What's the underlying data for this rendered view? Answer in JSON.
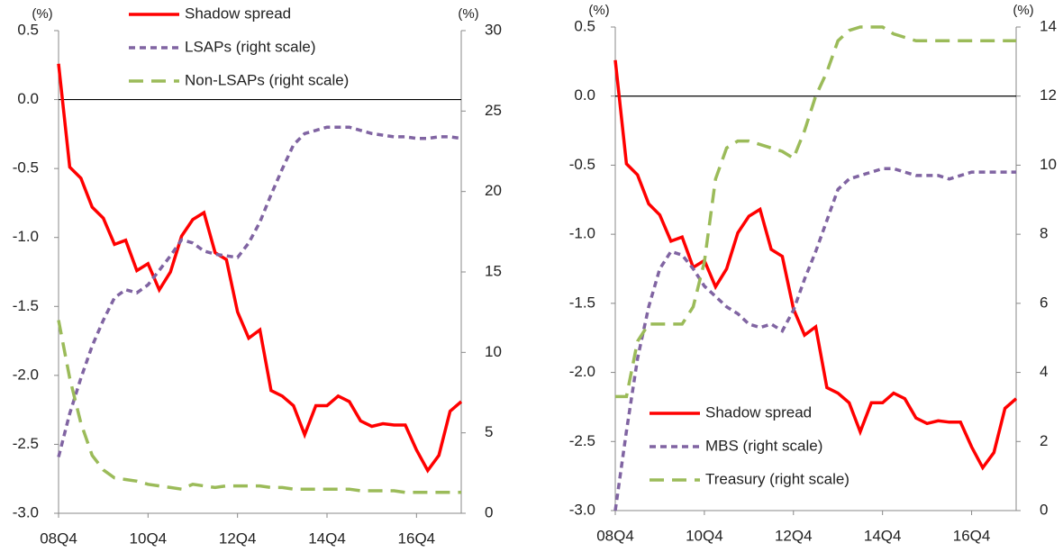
{
  "chart_data": [
    {
      "type": "line",
      "y_unit": "(%)",
      "y2_unit": "(%)",
      "categories": [
        "08Q4",
        null,
        null,
        null,
        null,
        null,
        null,
        null,
        "10Q4",
        null,
        null,
        null,
        null,
        null,
        null,
        null,
        "12Q4",
        null,
        null,
        null,
        null,
        null,
        null,
        null,
        "14Q4",
        null,
        null,
        null,
        null,
        null,
        null,
        null,
        "16Q4",
        null,
        null,
        null,
        null
      ],
      "ylim": [
        -3.0,
        0.5
      ],
      "yticks": [
        {
          "value": -3,
          "label": "-3.0"
        },
        -2.5,
        {
          "value": -2,
          "label": "-2.0"
        },
        -1.5,
        {
          "value": -1,
          "label": "-1.0"
        },
        -0.5,
        {
          "value": 0,
          "label": "0.0"
        },
        0.5
      ],
      "y2lim": [
        0,
        30
      ],
      "y2ticks": [
        0,
        5,
        10,
        15,
        20,
        25,
        30
      ],
      "zero_line": true,
      "legend": "top",
      "series": [
        {
          "name": "Shadow spread",
          "color": "#ff0000",
          "dash": "solid",
          "values": [
            0.26,
            -0.49,
            -0.57,
            -0.78,
            -0.86,
            -1.05,
            -1.02,
            -1.24,
            -1.19,
            -1.38,
            -1.25,
            -0.99,
            -0.87,
            -0.82,
            -1.11,
            -1.16,
            -1.54,
            -1.73,
            -1.67,
            -2.11,
            -2.15,
            -2.22,
            -2.43,
            -2.22,
            -2.22,
            -2.15,
            -2.19,
            -2.33,
            -2.37,
            -2.35,
            -2.36,
            -2.36,
            -2.54,
            -2.69,
            -2.58,
            -2.26,
            -2.19
          ]
        },
        {
          "name": "LSAPs (right scale)",
          "color": "#8064a2",
          "dash": "short",
          "axis": "y2",
          "values": [
            3.5,
            6.2,
            8.4,
            10.4,
            12.0,
            13.4,
            13.9,
            13.7,
            14.2,
            15.1,
            16.0,
            17.0,
            16.8,
            16.3,
            16.1,
            16.0,
            15.9,
            16.8,
            18.1,
            19.8,
            21.4,
            22.9,
            23.6,
            23.8,
            24.0,
            24.0,
            24.0,
            23.8,
            23.6,
            23.5,
            23.4,
            23.4,
            23.3,
            23.3,
            23.4,
            23.4,
            23.3
          ]
        },
        {
          "name": "Non-LSAPs (right scale)",
          "color": "#9bbb59",
          "dash": "long",
          "axis": "y2",
          "values": [
            12.0,
            8.4,
            5.6,
            3.6,
            2.7,
            2.2,
            2.1,
            2.0,
            1.8,
            1.7,
            1.6,
            1.5,
            1.8,
            1.7,
            1.6,
            1.7,
            1.7,
            1.7,
            1.7,
            1.6,
            1.6,
            1.5,
            1.5,
            1.5,
            1.5,
            1.5,
            1.5,
            1.4,
            1.4,
            1.4,
            1.4,
            1.3,
            1.3,
            1.3,
            1.3,
            1.3,
            1.3
          ]
        }
      ]
    },
    {
      "type": "line",
      "y_unit": "(%)",
      "y2_unit": "(%)",
      "categories": [
        "08Q4",
        null,
        null,
        null,
        null,
        null,
        null,
        null,
        "10Q4",
        null,
        null,
        null,
        null,
        null,
        null,
        null,
        "12Q4",
        null,
        null,
        null,
        null,
        null,
        null,
        null,
        "14Q4",
        null,
        null,
        null,
        null,
        null,
        null,
        null,
        "16Q4",
        null,
        null,
        null,
        null
      ],
      "ylim": [
        -3.0,
        0.5
      ],
      "yticks": [
        {
          "value": -3,
          "label": "-3.0"
        },
        -2.5,
        {
          "value": -2,
          "label": "-2.0"
        },
        -1.5,
        {
          "value": -1,
          "label": "-1.0"
        },
        -0.5,
        {
          "value": 0,
          "label": "0.0"
        },
        0.5
      ],
      "y2lim": [
        0,
        14
      ],
      "y2ticks": [
        0,
        2,
        4,
        6,
        8,
        10,
        12,
        14
      ],
      "zero_line": true,
      "legend": "bottom-left",
      "series": [
        {
          "name": "Shadow spread",
          "color": "#ff0000",
          "dash": "solid",
          "values": [
            0.26,
            -0.49,
            -0.57,
            -0.78,
            -0.86,
            -1.05,
            -1.02,
            -1.24,
            -1.19,
            -1.38,
            -1.25,
            -0.99,
            -0.87,
            -0.82,
            -1.11,
            -1.16,
            -1.54,
            -1.73,
            -1.67,
            -2.11,
            -2.15,
            -2.22,
            -2.43,
            -2.22,
            -2.22,
            -2.15,
            -2.19,
            -2.33,
            -2.37,
            -2.35,
            -2.36,
            -2.36,
            -2.54,
            -2.69,
            -2.58,
            -2.26,
            -2.19
          ]
        },
        {
          "name": "MBS (right scale)",
          "color": "#8064a2",
          "dash": "short",
          "axis": "y2",
          "values": [
            0,
            2.3,
            4.4,
            5.9,
            7.0,
            7.5,
            7.4,
            7.0,
            6.5,
            6.2,
            5.9,
            5.7,
            5.4,
            5.3,
            5.4,
            5.2,
            5.8,
            6.7,
            7.5,
            8.4,
            9.3,
            9.6,
            9.7,
            9.8,
            9.9,
            9.9,
            9.8,
            9.7,
            9.7,
            9.7,
            9.6,
            9.7,
            9.8,
            9.8,
            9.8,
            9.8,
            9.8
          ]
        },
        {
          "name": "Treasury (right scale)",
          "color": "#9bbb59",
          "dash": "long",
          "axis": "y2",
          "values": [
            3.3,
            3.3,
            4.9,
            5.4,
            5.4,
            5.4,
            5.4,
            5.9,
            7.2,
            9.6,
            10.5,
            10.7,
            10.7,
            10.6,
            10.5,
            10.4,
            10.2,
            11.0,
            12.0,
            12.7,
            13.6,
            13.9,
            14.0,
            14.0,
            14.0,
            13.8,
            13.7,
            13.6,
            13.6,
            13.6,
            13.6,
            13.6,
            13.6,
            13.6,
            13.6,
            13.6,
            13.6
          ]
        }
      ]
    }
  ]
}
